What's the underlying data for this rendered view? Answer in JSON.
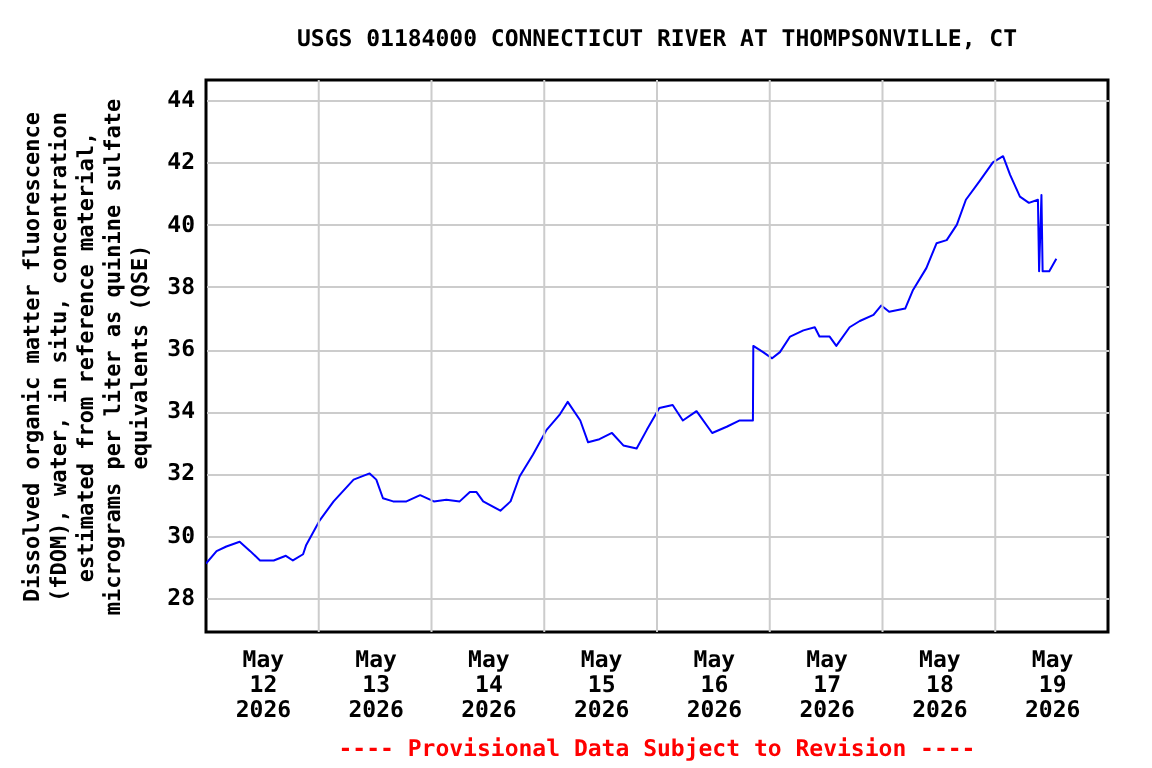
{
  "chart_data": {
    "type": "line",
    "title": "USGS 01184000 CONNECTICUT RIVER AT THOMPSONVILLE, CT",
    "ylabel": "Dissolved organic matter fluorescence (fDOM), water, in situ, concentration estimated from reference material, micrograms per liter as quinine sulfate equivalents (QSE)",
    "annotations": [
      "---- Provisional Data Subject to Revision ----"
    ],
    "xlim": [
      "2026-05-12T00:00",
      "2026-05-20T00:00"
    ],
    "xticks": [
      {
        "value": "2026-05-12T12:00",
        "label": "May\n12\n2026"
      },
      {
        "value": "2026-05-13T12:00",
        "label": "May\n13\n2026"
      },
      {
        "value": "2026-05-14T12:00",
        "label": "May\n14\n2026"
      },
      {
        "value": "2026-05-15T12:00",
        "label": "May\n15\n2026"
      },
      {
        "value": "2026-05-16T12:00",
        "label": "May\n16\n2026"
      },
      {
        "value": "2026-05-17T12:00",
        "label": "May\n17\n2026"
      },
      {
        "value": "2026-05-18T12:00",
        "label": "May\n18\n2026"
      },
      {
        "value": "2026-05-19T12:00",
        "label": "May\n19\n2026"
      },
      {
        "value": "2026-05-13T00:00",
        "label": null
      },
      {
        "value": "2026-05-14T00:00",
        "label": null
      },
      {
        "value": "2026-05-15T00:00",
        "label": null
      },
      {
        "value": "2026-05-16T00:00",
        "label": null
      },
      {
        "value": "2026-05-17T00:00",
        "label": null
      },
      {
        "value": "2026-05-18T00:00",
        "label": null
      },
      {
        "value": "2026-05-19T00:00",
        "label": null
      }
    ],
    "ylim": [
      26.9,
      44.65
    ],
    "yticks": [
      28,
      30,
      32,
      34,
      36,
      38,
      40,
      42,
      44
    ],
    "grid": true,
    "series": [
      {
        "color": "#0000ff",
        "x": [
          "2026-05-12T00:00",
          "2026-05-12T02:15",
          "2026-05-12T04:20",
          "2026-05-12T07:10",
          "2026-05-12T09:25",
          "2026-05-12T11:30",
          "2026-05-12T14:25",
          "2026-05-12T17:00",
          "2026-05-12T18:30",
          "2026-05-12T20:40",
          "2026-05-12T21:20",
          "2026-05-13T00:15",
          "2026-05-13T03:10",
          "2026-05-13T07:25",
          "2026-05-13T10:50",
          "2026-05-13T12:15",
          "2026-05-13T13:40",
          "2026-05-13T15:50",
          "2026-05-13T18:40",
          "2026-05-13T21:35",
          "2026-05-14T00:30",
          "2026-05-14T03:10",
          "2026-05-14T06:00",
          "2026-05-14T08:10",
          "2026-05-14T09:35",
          "2026-05-14T11:00",
          "2026-05-14T14:40",
          "2026-05-14T16:50",
          "2026-05-14T18:45",
          "2026-05-14T21:35",
          "2026-05-15T00:30",
          "2026-05-15T03:20",
          "2026-05-15T05:00",
          "2026-05-15T07:40",
          "2026-05-15T09:20",
          "2026-05-15T11:45",
          "2026-05-15T14:25",
          "2026-05-15T16:50",
          "2026-05-15T19:40",
          "2026-05-15T21:50",
          "2026-05-16T00:30",
          "2026-05-16T03:20",
          "2026-05-16T05:30",
          "2026-05-16T08:25",
          "2026-05-16T11:45",
          "2026-05-16T14:50",
          "2026-05-16T17:30",
          "2026-05-16T20:25",
          "2026-05-16T20:30",
          "2026-05-16T22:35",
          "2026-05-17T00:30",
          "2026-05-17T02:10",
          "2026-05-17T04:20",
          "2026-05-17T07:10",
          "2026-05-17T09:35",
          "2026-05-17T10:35",
          "2026-05-17T12:45",
          "2026-05-17T14:10",
          "2026-05-17T17:00",
          "2026-05-17T19:10",
          "2026-05-17T22:05",
          "2026-05-17T23:45",
          "2026-05-18T01:25",
          "2026-05-18T04:50",
          "2026-05-18T06:30",
          "2026-05-18T09:20",
          "2026-05-18T11:30",
          "2026-05-18T13:40",
          "2026-05-18T15:50",
          "2026-05-18T17:45",
          "2026-05-18T20:40",
          "2026-05-18T23:30",
          "2026-05-19T01:40",
          "2026-05-19T03:10",
          "2026-05-19T05:15",
          "2026-05-19T07:10",
          "2026-05-19T09:05",
          "2026-05-19T09:20",
          "2026-05-19T09:50",
          "2026-05-19T10:05",
          "2026-05-19T11:30",
          "2026-05-19T13:00"
        ],
        "values": [
          29.1,
          29.5,
          29.65,
          29.8,
          29.5,
          29.2,
          29.2,
          29.35,
          29.2,
          29.4,
          29.7,
          30.5,
          31.1,
          31.8,
          32.0,
          31.8,
          31.2,
          31.1,
          31.1,
          31.3,
          31.1,
          31.15,
          31.1,
          31.4,
          31.4,
          31.1,
          30.8,
          31.1,
          31.9,
          32.6,
          33.4,
          33.9,
          34.3,
          33.7,
          33.0,
          33.1,
          33.3,
          32.9,
          32.8,
          33.4,
          34.1,
          34.2,
          33.7,
          34.0,
          33.3,
          33.5,
          33.7,
          33.7,
          36.1,
          35.9,
          35.7,
          35.9,
          36.4,
          36.6,
          36.7,
          36.4,
          36.4,
          36.1,
          36.7,
          36.9,
          37.1,
          37.4,
          37.2,
          37.3,
          37.9,
          38.6,
          39.4,
          39.5,
          40.0,
          40.8,
          41.4,
          42.0,
          42.2,
          41.6,
          40.9,
          40.7,
          40.8,
          38.5,
          40.95,
          38.5,
          38.5,
          38.9
        ]
      }
    ]
  }
}
